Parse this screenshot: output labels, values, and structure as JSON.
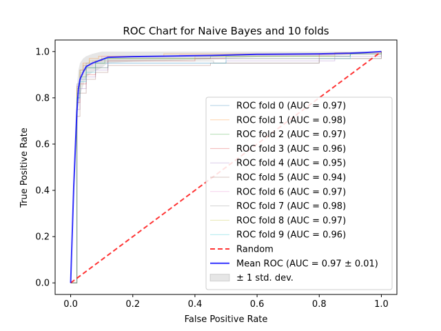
{
  "chart_data": {
    "type": "line",
    "title": "ROC Chart for Naive Bayes and 10 folds",
    "xlabel": "False Positive Rate",
    "ylabel": "True Positive Rate",
    "xlim": [
      -0.05,
      1.05
    ],
    "ylim": [
      -0.05,
      1.05
    ],
    "xticks": [
      "0.0",
      "0.2",
      "0.4",
      "0.6",
      "0.8",
      "1.0"
    ],
    "yticks": [
      "0.0",
      "0.2",
      "0.4",
      "0.6",
      "0.8",
      "1.0"
    ],
    "legend_position": "lower-right",
    "series": [
      {
        "name": "ROC fold 0 (AUC = 0.97)",
        "color": "#1f77b4",
        "x": [
          0,
          0.02,
          0.03,
          0.05,
          0.08,
          0.12,
          0.5,
          0.9,
          1.0
        ],
        "y": [
          0,
          0.8,
          0.88,
          0.93,
          0.95,
          0.97,
          0.98,
          0.99,
          1.0
        ]
      },
      {
        "name": "ROC fold 1 (AUC = 0.98)",
        "color": "#ff7f0e",
        "x": [
          0,
          0.02,
          0.03,
          0.04,
          0.06,
          0.09,
          0.3,
          0.85,
          1.0
        ],
        "y": [
          0,
          0.85,
          0.92,
          0.95,
          0.97,
          0.98,
          0.99,
          0.995,
          1.0
        ]
      },
      {
        "name": "ROC fold 2 (AUC = 0.97)",
        "color": "#2ca02c",
        "x": [
          0,
          0.02,
          0.03,
          0.05,
          0.08,
          0.11,
          0.45,
          0.9,
          1.0
        ],
        "y": [
          0,
          0.82,
          0.89,
          0.93,
          0.95,
          0.97,
          0.98,
          0.99,
          1.0
        ]
      },
      {
        "name": "ROC fold 3 (AUC = 0.96)",
        "color": "#d62728",
        "x": [
          0,
          0.02,
          0.03,
          0.05,
          0.08,
          0.12,
          0.4,
          0.8,
          1.0
        ],
        "y": [
          0,
          0.78,
          0.86,
          0.9,
          0.93,
          0.96,
          0.97,
          0.99,
          1.0
        ]
      },
      {
        "name": "ROC fold 4 (AUC = 0.95)",
        "color": "#9467bd",
        "x": [
          0,
          0.02,
          0.03,
          0.05,
          0.08,
          0.12,
          0.5,
          0.85,
          1.0
        ],
        "y": [
          0,
          0.75,
          0.84,
          0.89,
          0.92,
          0.95,
          0.96,
          0.98,
          1.0
        ]
      },
      {
        "name": "ROC fold 5 (AUC = 0.94)",
        "color": "#8c564b",
        "x": [
          0,
          0.02,
          0.03,
          0.05,
          0.08,
          0.12,
          0.45,
          0.8,
          1.0
        ],
        "y": [
          0,
          0.72,
          0.82,
          0.88,
          0.91,
          0.94,
          0.95,
          0.97,
          1.0
        ]
      },
      {
        "name": "ROC fold 6 (AUC = 0.97)",
        "color": "#e377c2",
        "x": [
          0,
          0.02,
          0.03,
          0.04,
          0.07,
          0.1,
          0.35,
          0.85,
          1.0
        ],
        "y": [
          0,
          0.83,
          0.9,
          0.94,
          0.96,
          0.98,
          0.985,
          0.99,
          1.0
        ]
      },
      {
        "name": "ROC fold 7 (AUC = 0.98)",
        "color": "#7f7f7f",
        "x": [
          0,
          0.02,
          0.03,
          0.05,
          0.08,
          0.12,
          0.46,
          0.8,
          1.0
        ],
        "y": [
          0,
          0.86,
          0.92,
          0.95,
          0.96,
          0.96,
          0.95,
          0.97,
          1.0
        ]
      },
      {
        "name": "ROC fold 8 (AUC = 0.97)",
        "color": "#bcbd22",
        "x": [
          0,
          0.02,
          0.03,
          0.04,
          0.06,
          0.1,
          0.4,
          0.85,
          1.0
        ],
        "y": [
          0,
          0.84,
          0.91,
          0.94,
          0.96,
          0.97,
          0.98,
          0.99,
          1.0
        ]
      },
      {
        "name": "ROC fold 9 (AUC = 0.96)",
        "color": "#17becf",
        "x": [
          0,
          0.02,
          0.03,
          0.05,
          0.08,
          0.12,
          0.5,
          0.9,
          1.0
        ],
        "y": [
          0,
          0.8,
          0.87,
          0.91,
          0.93,
          0.95,
          0.97,
          0.99,
          1.0
        ]
      }
    ],
    "random": {
      "name": "Random",
      "color": "#ff0000",
      "x": [
        0,
        1
      ],
      "y": [
        0,
        1
      ]
    },
    "mean": {
      "name": "Mean ROC (AUC = 0.97 ± 0.01)",
      "color": "#0000ff",
      "x": [
        0,
        0.01,
        0.02,
        0.025,
        0.03,
        0.04,
        0.05,
        0.07,
        0.1,
        0.12,
        0.2,
        0.3,
        0.45,
        0.6,
        0.8,
        0.9,
        0.95,
        1.0
      ],
      "y": [
        0,
        0.42,
        0.74,
        0.84,
        0.88,
        0.91,
        0.935,
        0.95,
        0.965,
        0.975,
        0.978,
        0.98,
        0.983,
        0.988,
        0.99,
        0.993,
        0.996,
        1.0
      ]
    },
    "band": {
      "name": "± 1 std. dev.",
      "color": "#808080",
      "upper": [
        0,
        0.5,
        0.85,
        0.92,
        0.95,
        0.97,
        0.98,
        0.99,
        1.0,
        1.0,
        1.0,
        1.0,
        1.0,
        1.0,
        1.0,
        1.0,
        1.0,
        1.0
      ],
      "lower": [
        0,
        0.34,
        0.63,
        0.76,
        0.81,
        0.85,
        0.89,
        0.91,
        0.93,
        0.95,
        0.956,
        0.96,
        0.966,
        0.976,
        0.98,
        0.986,
        0.992,
        1.0
      ]
    }
  }
}
